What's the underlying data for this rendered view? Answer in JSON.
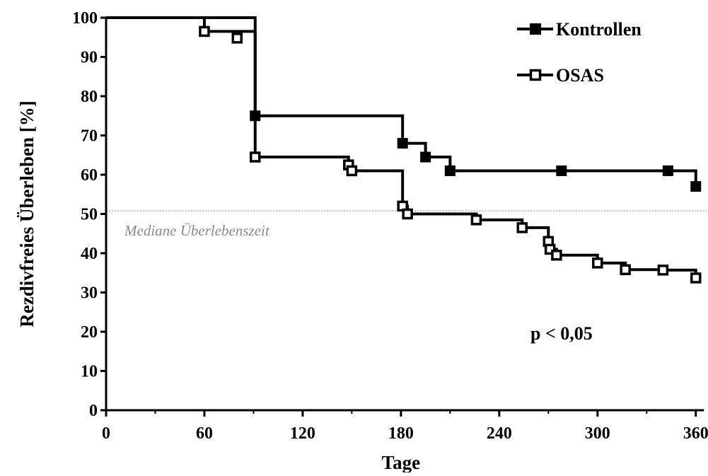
{
  "chart_data": {
    "type": "line",
    "subtype": "kaplan-meier step",
    "title": "",
    "xlabel": "Tage",
    "ylabel": "Rezdivfreies Überleben [%]",
    "xlim": [
      0,
      365
    ],
    "ylim": [
      0,
      100
    ],
    "x_ticks": [
      "0",
      "60",
      "120",
      "180",
      "240",
      "300",
      "360"
    ],
    "x_tick_values": [
      0,
      60,
      120,
      180,
      240,
      300,
      360
    ],
    "y_ticks": [
      "0",
      "10",
      "20",
      "30",
      "40",
      "50",
      "60",
      "70",
      "80",
      "90",
      "100"
    ],
    "y_tick_values": [
      0,
      10,
      20,
      30,
      40,
      50,
      60,
      70,
      80,
      90,
      100
    ],
    "grid": false,
    "legend_position": "top-right",
    "series": [
      {
        "name": "Kontrollen",
        "marker": "filled-square",
        "color": "#000000",
        "steps": [
          [
            0,
            100
          ],
          [
            91,
            75
          ],
          [
            181,
            68
          ],
          [
            195,
            64.5
          ],
          [
            210,
            61
          ],
          [
            360,
            57
          ]
        ],
        "end_x": 360,
        "markers": [
          [
            91,
            75
          ],
          [
            181,
            68
          ],
          [
            195,
            64.5
          ],
          [
            210,
            61
          ],
          [
            278,
            61
          ],
          [
            343,
            61
          ],
          [
            360,
            57
          ]
        ]
      },
      {
        "name": "OSAS",
        "marker": "open-square",
        "color": "#000000",
        "steps": [
          [
            0,
            100
          ],
          [
            60,
            96.5
          ],
          [
            91,
            64.5
          ],
          [
            148,
            62.5
          ],
          [
            150,
            61
          ],
          [
            181,
            52
          ],
          [
            184,
            50
          ],
          [
            226,
            48.5
          ],
          [
            254,
            46.5
          ],
          [
            270,
            43
          ],
          [
            271,
            41
          ],
          [
            275,
            39.5
          ],
          [
            300,
            37.5
          ],
          [
            317,
            35.8
          ],
          [
            340,
            35.7
          ],
          [
            360,
            33.7
          ]
        ],
        "end_x": 360,
        "markers": [
          [
            60,
            96.5
          ],
          [
            80,
            94.8
          ],
          [
            91,
            64.5
          ],
          [
            148,
            62.5
          ],
          [
            150,
            61
          ],
          [
            181,
            52
          ],
          [
            184,
            50
          ],
          [
            226,
            48.5
          ],
          [
            254,
            46.5
          ],
          [
            270,
            43
          ],
          [
            271,
            41
          ],
          [
            275,
            39.5
          ],
          [
            300,
            37.5
          ],
          [
            317,
            35.8
          ],
          [
            340,
            35.7
          ],
          [
            360,
            33.7
          ]
        ]
      }
    ],
    "reference_line": {
      "y": 50.8,
      "label": "Mediane Überlebenszeit",
      "color": "#999999"
    },
    "annotations": [
      {
        "text": "p < 0,05"
      }
    ]
  }
}
